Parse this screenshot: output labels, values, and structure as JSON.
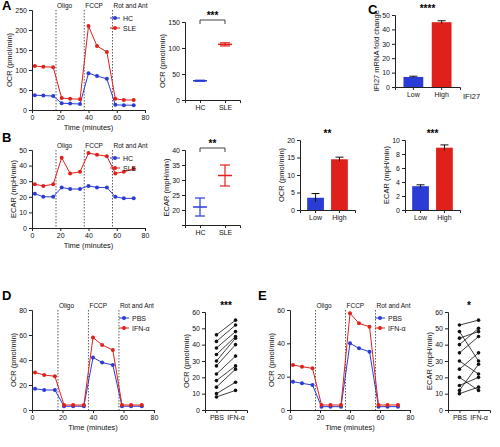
{
  "chart_data": [
    {
      "type": "line",
      "title": "A",
      "x_label": "Time (minutes)",
      "y_label": "OCR (pmol/min)",
      "x": [
        2,
        8,
        15,
        21,
        27,
        34,
        40,
        46,
        53,
        59,
        65,
        72
      ],
      "series": [
        {
          "name": "HC",
          "color": "#2b3bd6",
          "marker": "circle",
          "values": [
            37,
            36,
            35,
            17,
            16,
            15,
            92,
            85,
            78,
            13,
            12,
            12
          ]
        },
        {
          "name": "SLE",
          "color": "#e0201b",
          "marker": "circle",
          "values": [
            110,
            108,
            107,
            30,
            28,
            27,
            210,
            160,
            145,
            28,
            25,
            25
          ]
        }
      ],
      "xlim": [
        0,
        80
      ],
      "xticks": [
        0,
        20,
        40,
        60,
        80
      ],
      "ylim": [
        0,
        250
      ],
      "yticks": [
        0,
        50,
        100,
        150,
        200,
        250
      ],
      "legend": "upper right",
      "annotations": [
        {
          "text": "Oligo",
          "x": 17
        },
        {
          "text": "FCCP",
          "x": 37
        },
        {
          "text": "Rot and Ant",
          "x": 57
        }
      ]
    },
    {
      "type": "errorbar",
      "y_label": "OCR (pmol/min)",
      "categories": [
        "HC",
        "SLE"
      ],
      "values": [
        37,
        107
      ],
      "errors": [
        1,
        3
      ],
      "colors": [
        "#2b3bd6",
        "#e0201b"
      ],
      "ylim": [
        0,
        150
      ],
      "yticks": [
        0,
        50,
        100,
        150
      ],
      "annotations": [
        {
          "text": "***"
        }
      ]
    },
    {
      "type": "line",
      "title": "B",
      "x_label": "Time (minutes)",
      "y_label": "ECAR (mpH/min)",
      "x": [
        2,
        8,
        15,
        21,
        27,
        34,
        40,
        46,
        53,
        59,
        65,
        72
      ],
      "series": [
        {
          "name": "HC",
          "color": "#2b3bd6",
          "marker": "circle",
          "values": [
            22,
            20,
            20,
            26,
            25,
            25,
            27,
            26,
            26,
            20,
            19,
            19
          ]
        },
        {
          "name": "SLE",
          "color": "#e0201b",
          "marker": "circle",
          "values": [
            28,
            27,
            28,
            45,
            35,
            36,
            48,
            47,
            46,
            35,
            36,
            38
          ]
        }
      ],
      "xlim": [
        0,
        80
      ],
      "xticks": [
        0,
        20,
        40,
        60,
        80
      ],
      "ylim": [
        0,
        50
      ],
      "yticks": [
        0,
        10,
        20,
        30,
        40,
        50
      ],
      "legend": "upper right",
      "annotations": [
        {
          "text": "Oligo",
          "x": 17
        },
        {
          "text": "FCCP",
          "x": 37
        },
        {
          "text": "Rot and Ant",
          "x": 57
        }
      ]
    },
    {
      "type": "errorbar",
      "y_label": "ECAR (mpH/min)",
      "categories": [
        "HC",
        "SLE"
      ],
      "values": [
        21,
        31.5
      ],
      "errors": [
        3,
        3.5
      ],
      "colors": [
        "#2b3bd6",
        "#e0201b"
      ],
      "ylim": [
        15,
        40
      ],
      "yticks": [
        20,
        25,
        30,
        35,
        40
      ],
      "annotations": [
        {
          "text": "**"
        }
      ]
    },
    {
      "type": "bar",
      "title": "C",
      "x_label": "IFI27",
      "y_label": "IFI27 mRNA fold change",
      "categories": [
        "Low",
        "High"
      ],
      "values": [
        7,
        45
      ],
      "errors": [
        0.5,
        1
      ],
      "colors": [
        "#2b3bd6",
        "#e0201b"
      ],
      "ylim": [
        0,
        50
      ],
      "yticks": [
        0,
        10,
        20,
        30,
        40,
        50
      ],
      "annotations": [
        {
          "text": "****"
        }
      ]
    },
    {
      "type": "bar",
      "y_label": "OCR (pmol/min)",
      "categories": [
        "Low",
        "High"
      ],
      "values": [
        3.5,
        14.5
      ],
      "errors": [
        1.2,
        0.6
      ],
      "colors": [
        "#2b3bd6",
        "#e0201b"
      ],
      "ylim": [
        0,
        20
      ],
      "yticks": [
        0,
        5,
        10,
        15,
        20
      ],
      "annotations": [
        {
          "text": "**"
        }
      ]
    },
    {
      "type": "bar",
      "y_label": "ECAR (mpH/min)",
      "categories": [
        "Low",
        "High"
      ],
      "values": [
        3.4,
        8.9
      ],
      "errors": [
        0.2,
        0.4
      ],
      "colors": [
        "#2b3bd6",
        "#e0201b"
      ],
      "ylim": [
        0,
        10
      ],
      "yticks": [
        0,
        2,
        4,
        6,
        8,
        10
      ],
      "annotations": [
        {
          "text": "***"
        }
      ]
    },
    {
      "type": "line",
      "title": "D",
      "x_label": "Time (minutes)",
      "y_label": "OCR (pmol/min)",
      "x": [
        2,
        8,
        15,
        21,
        27,
        34,
        40,
        46,
        53,
        59,
        65,
        72
      ],
      "series": [
        {
          "name": "PBS",
          "color": "#2b3bd6",
          "marker": "circle",
          "values": [
            17,
            16,
            16,
            3,
            3,
            3,
            42,
            38,
            36,
            3,
            3,
            3
          ]
        },
        {
          "name": "IFN-α",
          "color": "#e0201b",
          "marker": "circle",
          "values": [
            30,
            28,
            27,
            4,
            4,
            4,
            58,
            52,
            48,
            4,
            4,
            4
          ]
        }
      ],
      "xlim": [
        0,
        80
      ],
      "xticks": [
        0,
        20,
        40,
        60,
        80
      ],
      "ylim": [
        0,
        80
      ],
      "yticks": [
        0,
        20,
        40,
        60,
        80
      ],
      "legend": "upper right",
      "annotations": [
        {
          "text": "Oligo",
          "x": 17
        },
        {
          "text": "FCCP",
          "x": 37
        },
        {
          "text": "Rot and Ant",
          "x": 57
        }
      ]
    },
    {
      "type": "paired",
      "y_label": "OCR (pmol/min)",
      "categories": [
        "PBS",
        "IFN-α"
      ],
      "values": [
        [
          8,
          12
        ],
        [
          10,
          17
        ],
        [
          14,
          25
        ],
        [
          18,
          27
        ],
        [
          22,
          33
        ],
        [
          27,
          40
        ],
        [
          30,
          44
        ],
        [
          34,
          45
        ],
        [
          38,
          48
        ],
        [
          42,
          52
        ],
        [
          46,
          55
        ]
      ],
      "color": "#111111",
      "ylim": [
        0,
        60
      ],
      "yticks": [
        0,
        10,
        20,
        30,
        40,
        50,
        60
      ],
      "annotations": [
        {
          "text": "***"
        }
      ]
    },
    {
      "type": "line",
      "title": "E",
      "x_label": "Time (minutes)",
      "y_label": "OCR (pmol/min)",
      "x": [
        2,
        8,
        15,
        21,
        27,
        34,
        40,
        46,
        53,
        59,
        65,
        72
      ],
      "series": [
        {
          "name": "PBS",
          "color": "#2b3bd6",
          "marker": "circle",
          "values": [
            17,
            16,
            15,
            2,
            2,
            2,
            40,
            37,
            35,
            2,
            2,
            2
          ]
        },
        {
          "name": "IFN-α",
          "color": "#e0201b",
          "marker": "circle",
          "values": [
            27,
            26,
            25,
            3,
            3,
            3,
            58,
            52,
            50,
            3,
            3,
            3
          ]
        }
      ],
      "xlim": [
        0,
        80
      ],
      "xticks": [
        0,
        20,
        40,
        60,
        80
      ],
      "ylim": [
        0,
        60
      ],
      "yticks": [
        0,
        20,
        40,
        60
      ],
      "legend": "upper right",
      "annotations": [
        {
          "text": "Oligo",
          "x": 17
        },
        {
          "text": "FCCP",
          "x": 37
        },
        {
          "text": "Rot and Ant",
          "x": 57
        }
      ]
    },
    {
      "type": "paired",
      "y_label": "ECAR (mpH/min)",
      "categories": [
        "PBS",
        "IFN-α"
      ],
      "values": [
        [
          10,
          14
        ],
        [
          12,
          28
        ],
        [
          20,
          12
        ],
        [
          25,
          35
        ],
        [
          30,
          22
        ],
        [
          35,
          45
        ],
        [
          40,
          50
        ],
        [
          48,
          30
        ],
        [
          52,
          55
        ],
        [
          15,
          20
        ],
        [
          44,
          48
        ]
      ],
      "color": "#111111",
      "ylim": [
        0,
        60
      ],
      "yticks": [
        0,
        10,
        20,
        30,
        40,
        50,
        60
      ],
      "annotations": [
        {
          "text": "*"
        }
      ]
    }
  ]
}
